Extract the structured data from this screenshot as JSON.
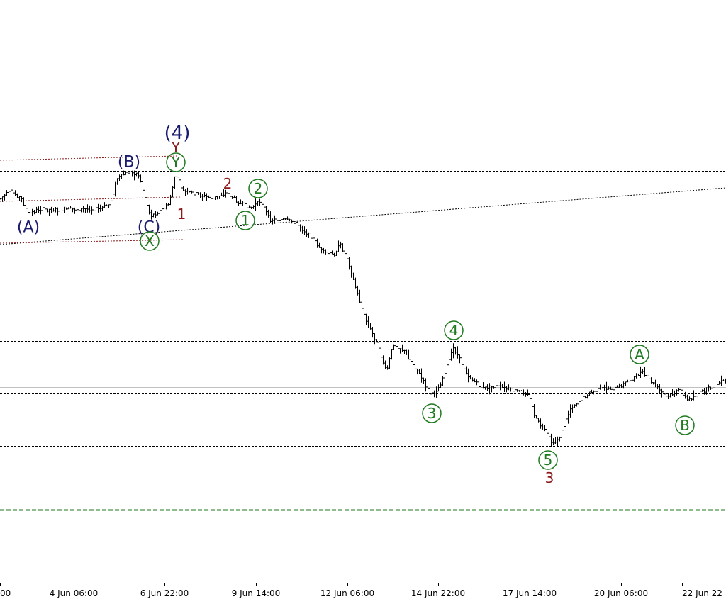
{
  "chart_data": {
    "type": "candlestick",
    "title": "",
    "xlabel": "",
    "ylabel": "",
    "grid": false,
    "x_ticks": [
      "00",
      "4 Jun 06:00",
      "6 Jun 22:00",
      "9 Jun 14:00",
      "12 Jun 06:00",
      "14 Jun 22:00",
      "17 Jun 14:00",
      "20 Jun 06:00",
      "22 Jun 22"
    ],
    "wave_labels": [
      {
        "text": "(A)",
        "color": "#1a1a6e",
        "circled": false
      },
      {
        "text": "(B)",
        "color": "#1a1a6e",
        "circled": false
      },
      {
        "text": "(C)",
        "color": "#1a1a6e",
        "circled": false
      },
      {
        "text": "(4)",
        "color": "#1a1a6e",
        "circled": false
      },
      {
        "text": "Y",
        "color": "#8b1a1a",
        "circled": false
      },
      {
        "text": "Y",
        "color": "#1e7a1e",
        "circled": true
      },
      {
        "text": "X",
        "color": "#1e7a1e",
        "circled": true
      },
      {
        "text": "1",
        "color": "#8b1a1a",
        "circled": false
      },
      {
        "text": "2",
        "color": "#8b1a1a",
        "circled": false
      },
      {
        "text": "1",
        "color": "#1e7a1e",
        "circled": true
      },
      {
        "text": "2",
        "color": "#1e7a1e",
        "circled": true
      },
      {
        "text": "3",
        "color": "#1e7a1e",
        "circled": true
      },
      {
        "text": "4",
        "color": "#1e7a1e",
        "circled": true
      },
      {
        "text": "5",
        "color": "#1e7a1e",
        "circled": true
      },
      {
        "text": "3",
        "color": "#8b1a1a",
        "circled": false
      },
      {
        "text": "A",
        "color": "#1e7a1e",
        "circled": true
      },
      {
        "text": "B",
        "color": "#1e7a1e",
        "circled": true
      }
    ],
    "colors": {
      "bars": "#000000",
      "levels": "#000000",
      "red_levels": "#8b1a1a",
      "green_level": "#1e7a1e",
      "current_price_line": "#c0c0c0"
    }
  }
}
